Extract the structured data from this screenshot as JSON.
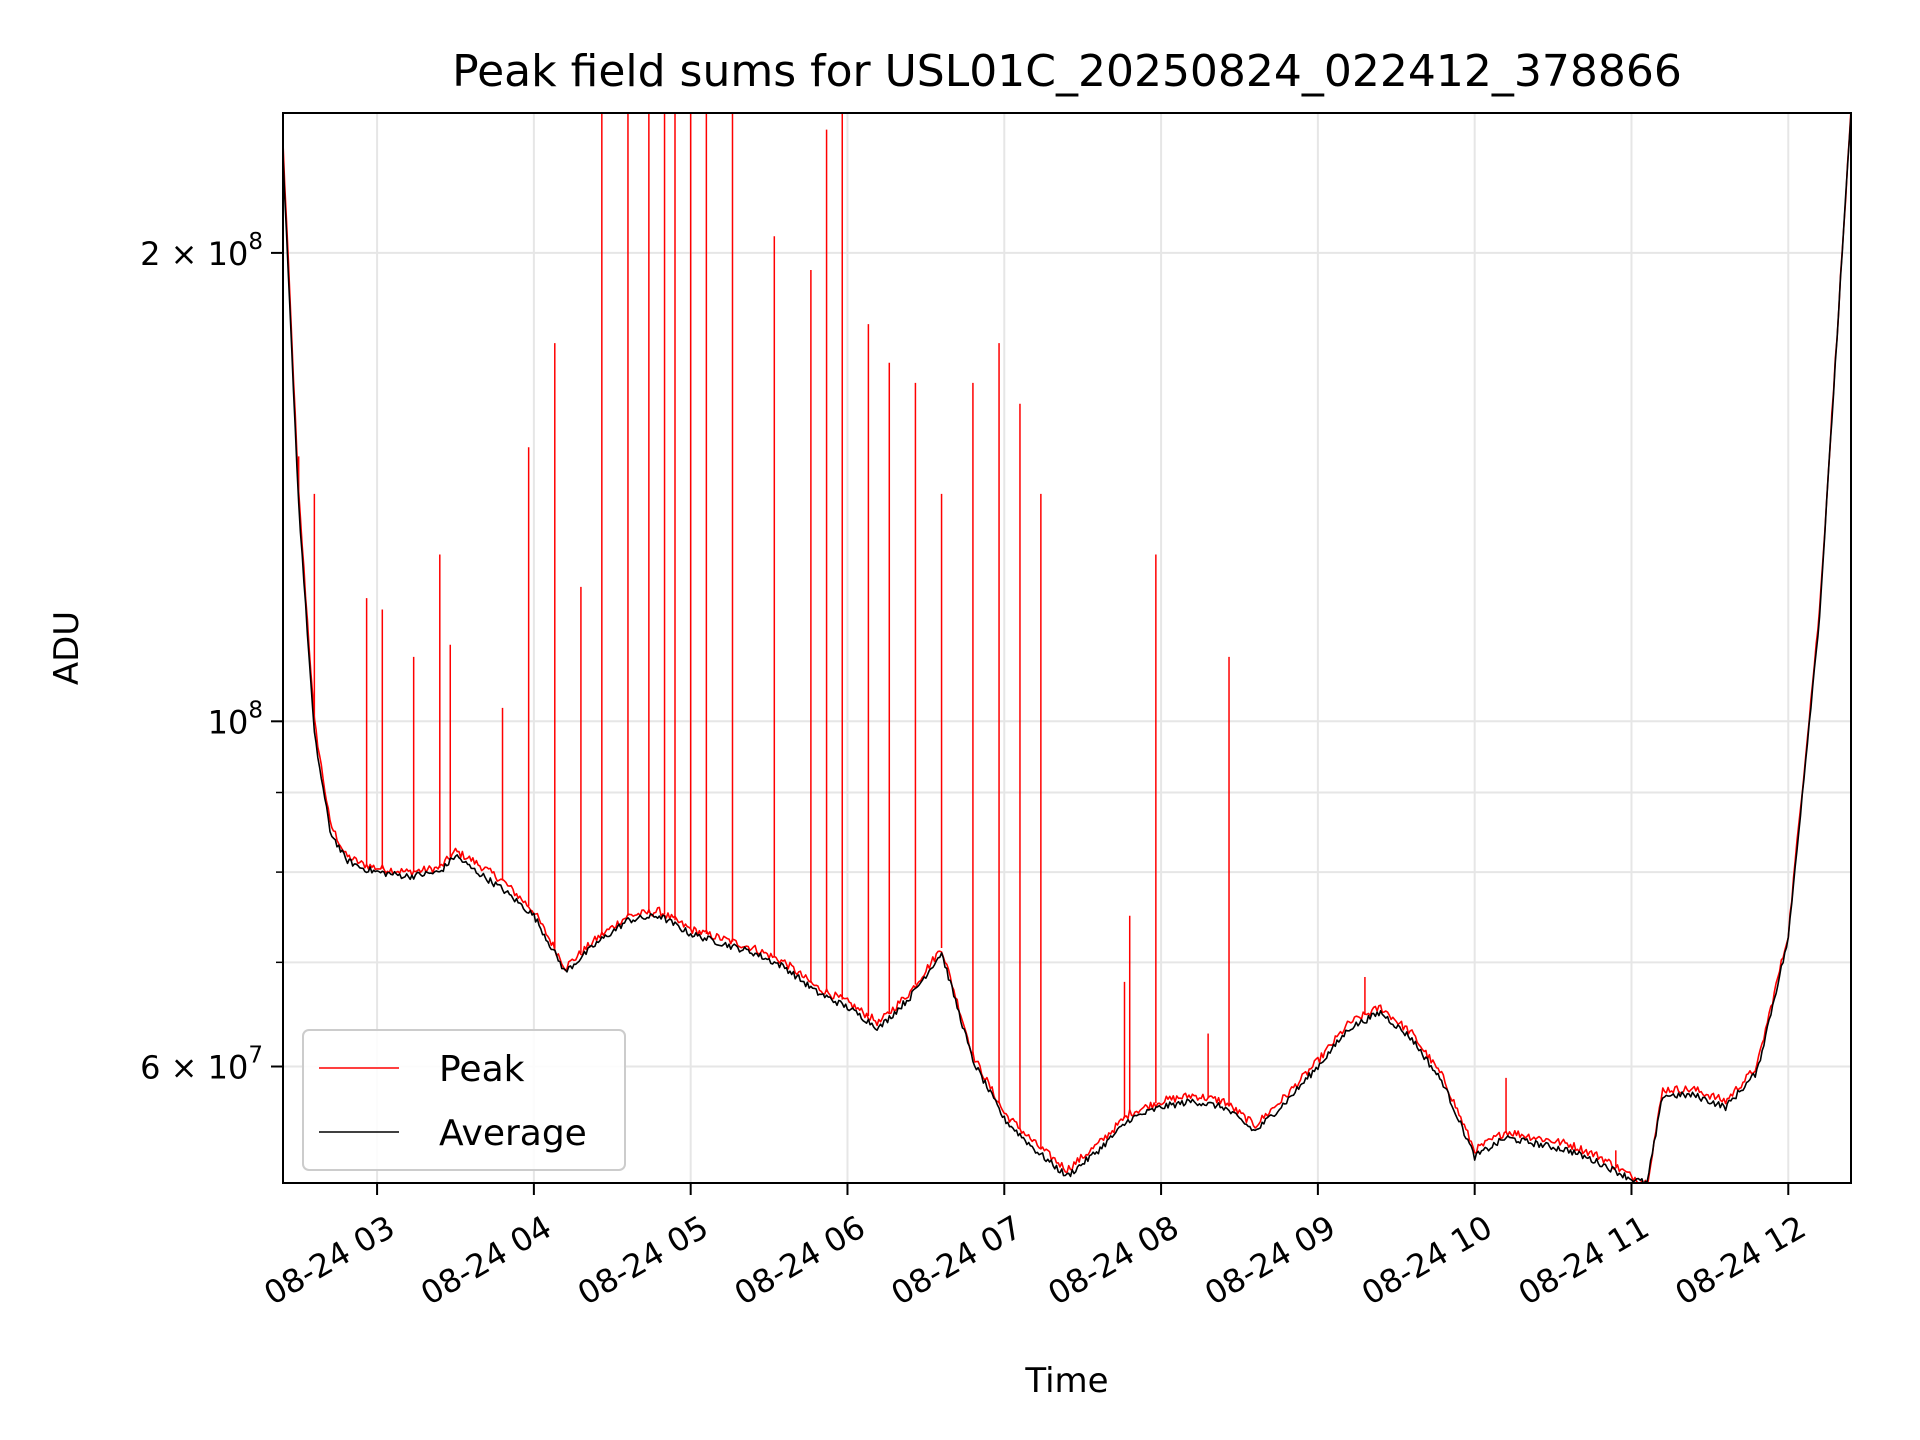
{
  "chart_data": {
    "type": "line",
    "title": "Peak field sums for USL01C_20250824_022412_378866",
    "xlabel": "Time",
    "ylabel": "ADU",
    "y_scale": "log",
    "ylim": [
      50500000,
      246000000
    ],
    "xlim": [
      "2025-08-24 02:24",
      "2025-08-24 12:24"
    ],
    "x_ticks": [
      "08-24 03",
      "08-24 04",
      "08-24 05",
      "08-24 06",
      "08-24 07",
      "08-24 08",
      "08-24 09",
      "08-24 10",
      "08-24 11",
      "08-24 12"
    ],
    "y_ticks": [
      {
        "value": 200000000,
        "mantissa": "2",
        "exponent": "8"
      },
      {
        "value": 100000000,
        "mantissa": "",
        "exponent": "8"
      },
      {
        "value": 60000000,
        "mantissa": "6",
        "exponent": "7"
      }
    ],
    "y_minor_ticks": [
      70000000,
      80000000,
      90000000
    ],
    "grid": true,
    "legend_position": "lower-left",
    "series": [
      {
        "name": "Peak",
        "color": "#ff0000",
        "x": [
          "2025-08-24 02:24",
          "2025-08-24 02:30",
          "2025-08-24 02:36",
          "2025-08-24 02:42",
          "2025-08-24 02:48",
          "2025-08-24 02:54",
          "2025-08-24 03:00",
          "2025-08-24 03:12",
          "2025-08-24 03:24",
          "2025-08-24 03:30",
          "2025-08-24 03:36",
          "2025-08-24 03:48",
          "2025-08-24 04:00",
          "2025-08-24 04:12",
          "2025-08-24 04:24",
          "2025-08-24 04:36",
          "2025-08-24 04:48",
          "2025-08-24 05:00",
          "2025-08-24 05:12",
          "2025-08-24 05:24",
          "2025-08-24 05:36",
          "2025-08-24 05:48",
          "2025-08-24 06:00",
          "2025-08-24 06:12",
          "2025-08-24 06:24",
          "2025-08-24 06:36",
          "2025-08-24 06:48",
          "2025-08-24 07:00",
          "2025-08-24 07:12",
          "2025-08-24 07:24",
          "2025-08-24 07:36",
          "2025-08-24 07:48",
          "2025-08-24 08:00",
          "2025-08-24 08:12",
          "2025-08-24 08:24",
          "2025-08-24 08:36",
          "2025-08-24 08:48",
          "2025-08-24 09:00",
          "2025-08-24 09:12",
          "2025-08-24 09:24",
          "2025-08-24 09:36",
          "2025-08-24 09:48",
          "2025-08-24 10:00",
          "2025-08-24 10:12",
          "2025-08-24 10:24",
          "2025-08-24 10:36",
          "2025-08-24 10:48",
          "2025-08-24 11:00",
          "2025-08-24 11:06",
          "2025-08-24 11:12",
          "2025-08-24 11:24",
          "2025-08-24 11:36",
          "2025-08-24 11:48",
          "2025-08-24 12:00",
          "2025-08-24 12:12",
          "2025-08-24 12:24"
        ],
        "y": [
          235000000,
          140000000,
          100000000,
          86000000,
          82000000,
          81000000,
          80500000,
          80000000,
          80500000,
          82500000,
          81500000,
          79000000,
          75500000,
          69500000,
          72500000,
          75000000,
          75500000,
          73500000,
          72500000,
          71500000,
          70000000,
          67500000,
          66000000,
          64000000,
          67000000,
          71500000,
          61000000,
          56000000,
          53500000,
          51500000,
          53500000,
          56000000,
          57000000,
          57500000,
          57000000,
          55000000,
          57500000,
          60500000,
          64000000,
          65500000,
          63000000,
          59000000,
          53000000,
          54500000,
          54000000,
          53500000,
          52500000,
          51000000,
          50500000,
          58000000,
          58000000,
          57000000,
          60000000,
          73000000,
          118000000,
          246000000
        ],
        "spikes": [
          {
            "x": "2025-08-24 02:30",
            "y": 148000000
          },
          {
            "x": "2025-08-24 02:36",
            "y": 140000000
          },
          {
            "x": "2025-08-24 02:56",
            "y": 120000000
          },
          {
            "x": "2025-08-24 03:02",
            "y": 118000000
          },
          {
            "x": "2025-08-24 03:14",
            "y": 110000000
          },
          {
            "x": "2025-08-24 03:24",
            "y": 128000000
          },
          {
            "x": "2025-08-24 03:28",
            "y": 112000000
          },
          {
            "x": "2025-08-24 03:48",
            "y": 102000000
          },
          {
            "x": "2025-08-24 03:58",
            "y": 150000000
          },
          {
            "x": "2025-08-24 04:08",
            "y": 175000000
          },
          {
            "x": "2025-08-24 04:18",
            "y": 122000000
          },
          {
            "x": "2025-08-24 04:26",
            "y": 246000000
          },
          {
            "x": "2025-08-24 04:36",
            "y": 246000000
          },
          {
            "x": "2025-08-24 04:44",
            "y": 246000000
          },
          {
            "x": "2025-08-24 04:50",
            "y": 246000000
          },
          {
            "x": "2025-08-24 04:54",
            "y": 246000000
          },
          {
            "x": "2025-08-24 05:00",
            "y": 246000000
          },
          {
            "x": "2025-08-24 05:06",
            "y": 246000000
          },
          {
            "x": "2025-08-24 05:16",
            "y": 246000000
          },
          {
            "x": "2025-08-24 05:32",
            "y": 205000000
          },
          {
            "x": "2025-08-24 05:46",
            "y": 195000000
          },
          {
            "x": "2025-08-24 05:52",
            "y": 240000000
          },
          {
            "x": "2025-08-24 05:58",
            "y": 246000000
          },
          {
            "x": "2025-08-24 06:08",
            "y": 180000000
          },
          {
            "x": "2025-08-24 06:16",
            "y": 170000000
          },
          {
            "x": "2025-08-24 06:26",
            "y": 165000000
          },
          {
            "x": "2025-08-24 06:36",
            "y": 140000000
          },
          {
            "x": "2025-08-24 06:48",
            "y": 165000000
          },
          {
            "x": "2025-08-24 06:58",
            "y": 175000000
          },
          {
            "x": "2025-08-24 07:06",
            "y": 160000000
          },
          {
            "x": "2025-08-24 07:14",
            "y": 140000000
          },
          {
            "x": "2025-08-24 07:46",
            "y": 68000000
          },
          {
            "x": "2025-08-24 07:48",
            "y": 75000000
          },
          {
            "x": "2025-08-24 07:58",
            "y": 128000000
          },
          {
            "x": "2025-08-24 08:18",
            "y": 63000000
          },
          {
            "x": "2025-08-24 08:26",
            "y": 110000000
          },
          {
            "x": "2025-08-24 09:18",
            "y": 68500000
          },
          {
            "x": "2025-08-24 10:12",
            "y": 59000000
          },
          {
            "x": "2025-08-24 10:54",
            "y": 53000000
          }
        ]
      },
      {
        "name": "Average",
        "color": "#000000",
        "x": [
          "2025-08-24 02:24",
          "2025-08-24 02:30",
          "2025-08-24 02:36",
          "2025-08-24 02:42",
          "2025-08-24 02:48",
          "2025-08-24 02:54",
          "2025-08-24 03:00",
          "2025-08-24 03:12",
          "2025-08-24 03:24",
          "2025-08-24 03:30",
          "2025-08-24 03:36",
          "2025-08-24 03:48",
          "2025-08-24 04:00",
          "2025-08-24 04:12",
          "2025-08-24 04:24",
          "2025-08-24 04:36",
          "2025-08-24 04:48",
          "2025-08-24 05:00",
          "2025-08-24 05:12",
          "2025-08-24 05:24",
          "2025-08-24 05:36",
          "2025-08-24 05:48",
          "2025-08-24 06:00",
          "2025-08-24 06:12",
          "2025-08-24 06:24",
          "2025-08-24 06:36",
          "2025-08-24 06:48",
          "2025-08-24 07:00",
          "2025-08-24 07:12",
          "2025-08-24 07:24",
          "2025-08-24 07:36",
          "2025-08-24 07:48",
          "2025-08-24 08:00",
          "2025-08-24 08:12",
          "2025-08-24 08:24",
          "2025-08-24 08:36",
          "2025-08-24 08:48",
          "2025-08-24 09:00",
          "2025-08-24 09:12",
          "2025-08-24 09:24",
          "2025-08-24 09:36",
          "2025-08-24 09:48",
          "2025-08-24 10:00",
          "2025-08-24 10:12",
          "2025-08-24 10:24",
          "2025-08-24 10:36",
          "2025-08-24 10:48",
          "2025-08-24 11:00",
          "2025-08-24 11:06",
          "2025-08-24 11:12",
          "2025-08-24 11:24",
          "2025-08-24 11:36",
          "2025-08-24 11:48",
          "2025-08-24 12:00",
          "2025-08-24 12:12",
          "2025-08-24 12:24"
        ],
        "y": [
          230000000,
          138000000,
          98000000,
          85000000,
          81500000,
          80500000,
          80000000,
          79500000,
          80000000,
          82000000,
          80500000,
          78000000,
          75000000,
          69000000,
          72000000,
          74500000,
          75000000,
          73000000,
          72000000,
          71000000,
          69500000,
          67000000,
          65500000,
          63500000,
          66500000,
          71000000,
          60500000,
          55500000,
          53000000,
          51000000,
          53000000,
          55500000,
          56500000,
          57000000,
          56500000,
          54500000,
          57000000,
          60000000,
          63500000,
          65000000,
          62500000,
          58500000,
          52500000,
          54000000,
          53500000,
          53000000,
          52000000,
          50800000,
          50500000,
          57500000,
          57500000,
          56500000,
          59500000,
          72500000,
          117000000,
          246000000
        ]
      }
    ]
  }
}
